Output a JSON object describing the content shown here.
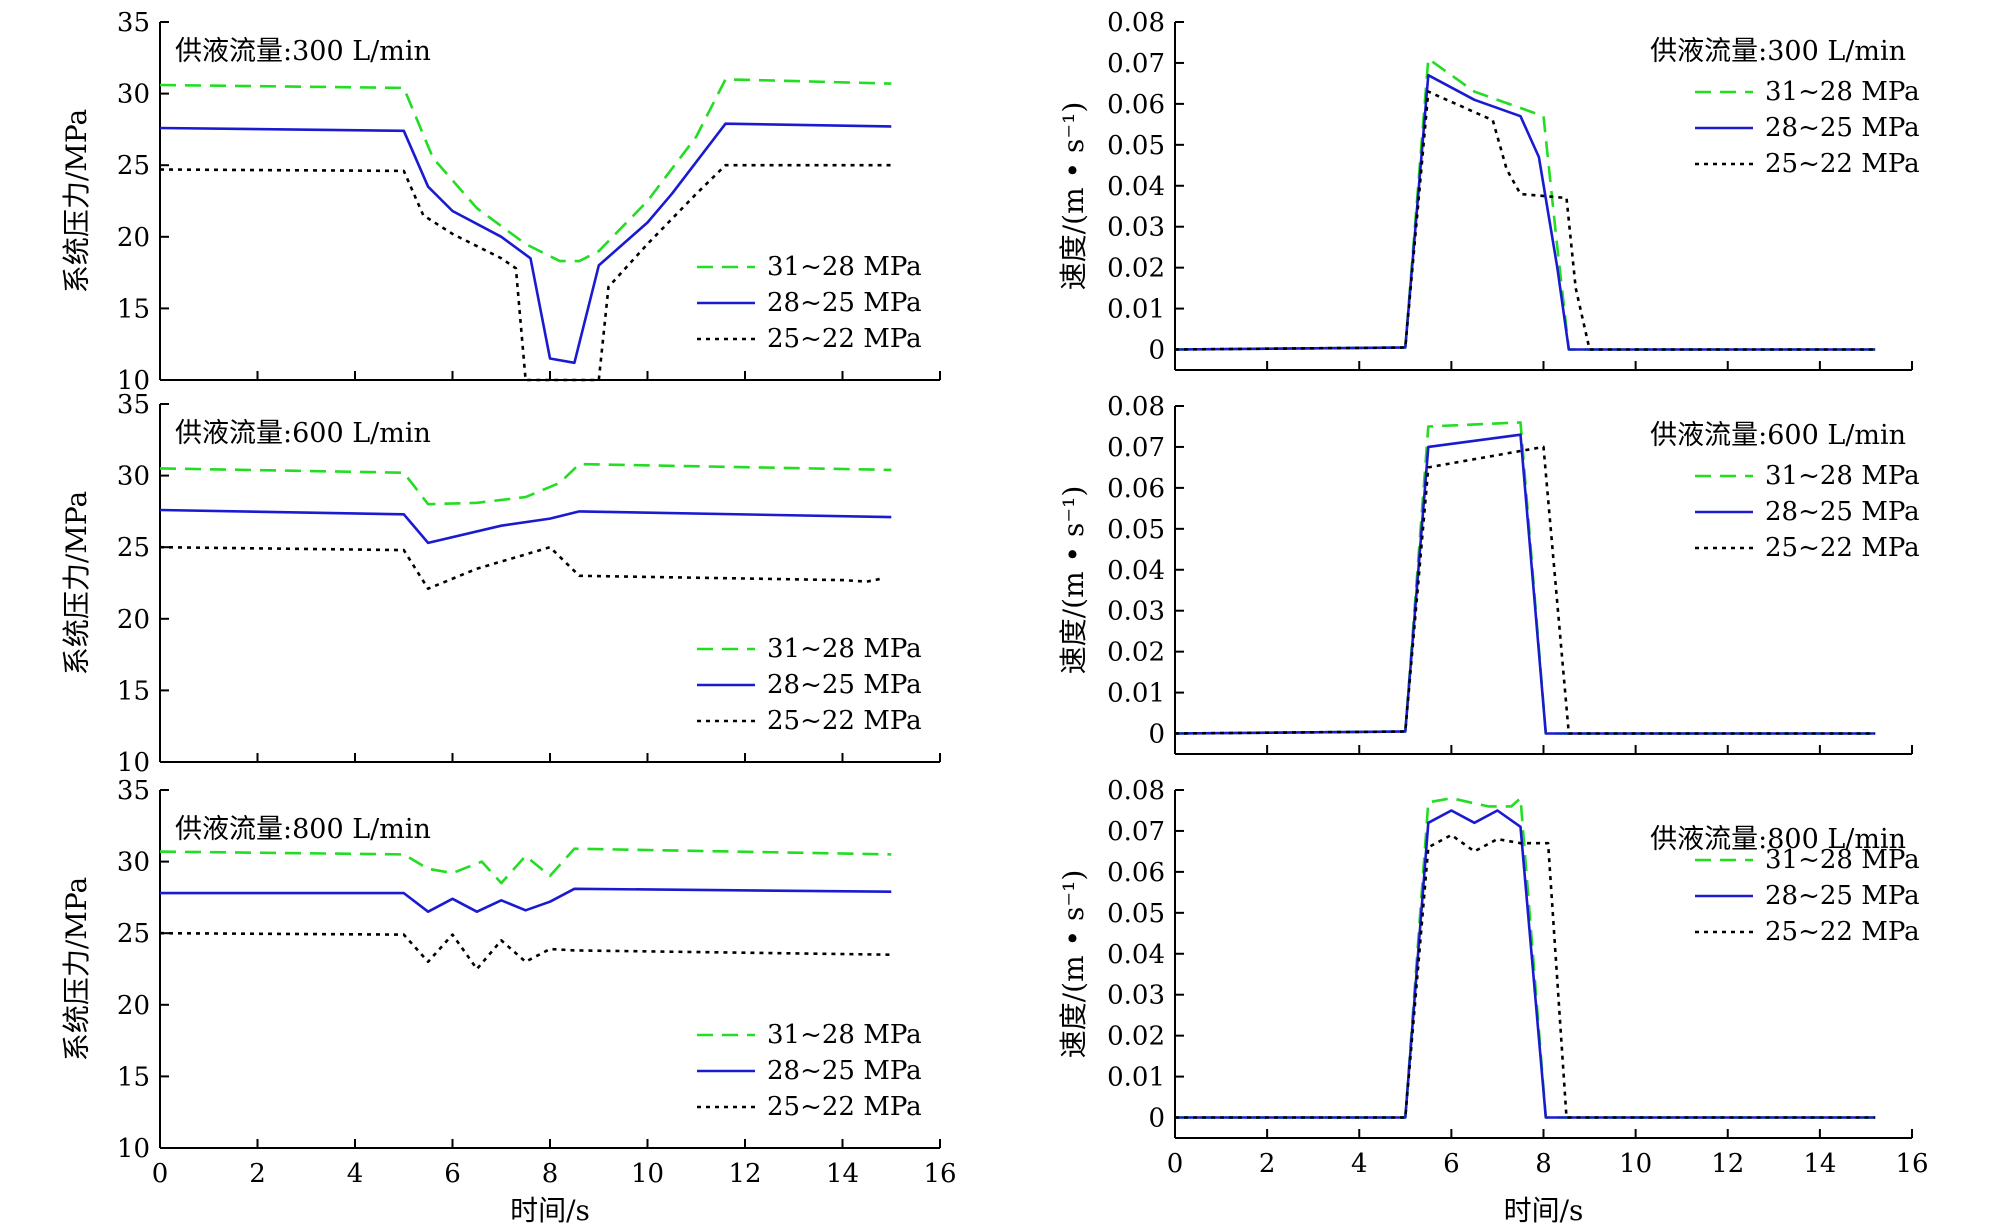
{
  "figure": {
    "xlabel": "时间/s",
    "left_ylabel": "系统压力/MPa",
    "right_ylabel": "速度/(m • s⁻¹)"
  },
  "legend": [
    {
      "name": "31~28 MPa",
      "color": "#22dd22",
      "dash": "dashed"
    },
    {
      "name": "28~25 MPa",
      "color": "#1a1ad0",
      "dash": "solid"
    },
    {
      "name": "25~22 MPa",
      "color": "#000000",
      "dash": "dotted"
    }
  ],
  "chart_data": [
    {
      "type": "line",
      "panel": "pressure-300",
      "flow_label": "供液流量:300 L/min",
      "ylabel": "系统压力/MPa",
      "xlim": [
        0,
        16
      ],
      "ylim": [
        10,
        35
      ],
      "xticks": [
        0,
        2,
        4,
        6,
        8,
        10,
        12,
        14,
        16
      ],
      "yticks": [
        10,
        15,
        20,
        25,
        30,
        35
      ],
      "series": [
        {
          "name": "31~28 MPa",
          "points": [
            [
              0,
              30.6
            ],
            [
              5,
              30.4
            ],
            [
              5.6,
              25.5
            ],
            [
              6.5,
              22
            ],
            [
              7.5,
              19.5
            ],
            [
              8.2,
              18.3
            ],
            [
              8.6,
              18.3
            ],
            [
              9,
              19
            ],
            [
              10,
              22.5
            ],
            [
              11,
              27
            ],
            [
              11.6,
              31
            ],
            [
              15,
              30.7
            ]
          ]
        },
        {
          "name": "28~25 MPa",
          "points": [
            [
              0,
              27.6
            ],
            [
              5,
              27.4
            ],
            [
              5.5,
              23.5
            ],
            [
              6,
              21.8
            ],
            [
              7,
              20
            ],
            [
              7.6,
              18.5
            ],
            [
              8,
              11.5
            ],
            [
              8.5,
              11.2
            ],
            [
              9,
              18
            ],
            [
              10,
              21
            ],
            [
              10.5,
              23
            ],
            [
              11.6,
              27.9
            ],
            [
              15,
              27.7
            ]
          ]
        },
        {
          "name": "25~22 MPa",
          "points": [
            [
              0,
              24.7
            ],
            [
              5,
              24.6
            ],
            [
              5.4,
              21.5
            ],
            [
              6,
              20.2
            ],
            [
              7,
              18.5
            ],
            [
              7.3,
              17.8
            ],
            [
              7.5,
              10
            ],
            [
              9,
              10
            ],
            [
              9.2,
              16.5
            ],
            [
              10,
              19.5
            ],
            [
              11,
              23
            ],
            [
              11.6,
              25
            ],
            [
              15,
              25
            ]
          ]
        }
      ]
    },
    {
      "type": "line",
      "panel": "pressure-600",
      "flow_label": "供液流量:600 L/min",
      "ylabel": "系统压力/MPa",
      "xlim": [
        0,
        16
      ],
      "ylim": [
        10,
        35
      ],
      "xticks": [
        0,
        2,
        4,
        6,
        8,
        10,
        12,
        14,
        16
      ],
      "yticks": [
        10,
        15,
        20,
        25,
        30,
        35
      ],
      "series": [
        {
          "name": "31~28 MPa",
          "points": [
            [
              0,
              30.5
            ],
            [
              5,
              30.2
            ],
            [
              5.5,
              28
            ],
            [
              6.5,
              28.1
            ],
            [
              7.5,
              28.5
            ],
            [
              8.2,
              29.5
            ],
            [
              8.6,
              30.8
            ],
            [
              15,
              30.4
            ]
          ]
        },
        {
          "name": "28~25 MPa",
          "points": [
            [
              0,
              27.6
            ],
            [
              5,
              27.3
            ],
            [
              5.5,
              25.3
            ],
            [
              7,
              26.5
            ],
            [
              8,
              27
            ],
            [
              8.6,
              27.5
            ],
            [
              15,
              27.1
            ]
          ]
        },
        {
          "name": "25~22 MPa",
          "points": [
            [
              0,
              25
            ],
            [
              5,
              24.8
            ],
            [
              5.5,
              22.1
            ],
            [
              6.5,
              23.5
            ],
            [
              7.5,
              24.5
            ],
            [
              8,
              25
            ],
            [
              8.6,
              23
            ],
            [
              14,
              22.7
            ],
            [
              14.5,
              22.6
            ],
            [
              14.8,
              22.8
            ]
          ]
        }
      ]
    },
    {
      "type": "line",
      "panel": "pressure-800",
      "flow_label": "供液流量:800 L/min",
      "ylabel": "系统压力/MPa",
      "xlim": [
        0,
        16
      ],
      "ylim": [
        10,
        35
      ],
      "xticks": [
        0,
        2,
        4,
        6,
        8,
        10,
        12,
        14,
        16
      ],
      "yticks": [
        10,
        15,
        20,
        25,
        30,
        35
      ],
      "series": [
        {
          "name": "31~28 MPa",
          "points": [
            [
              0,
              30.7
            ],
            [
              5,
              30.5
            ],
            [
              5.5,
              29.5
            ],
            [
              6,
              29.2
            ],
            [
              6.6,
              30
            ],
            [
              7,
              28.5
            ],
            [
              7.5,
              30.4
            ],
            [
              8,
              29
            ],
            [
              8.5,
              30.9
            ],
            [
              15,
              30.5
            ]
          ]
        },
        {
          "name": "28~25 MPa",
          "points": [
            [
              0,
              27.8
            ],
            [
              5,
              27.8
            ],
            [
              5.5,
              26.5
            ],
            [
              6,
              27.4
            ],
            [
              6.5,
              26.5
            ],
            [
              7,
              27.3
            ],
            [
              7.5,
              26.6
            ],
            [
              8,
              27.2
            ],
            [
              8.5,
              28.1
            ],
            [
              15,
              27.9
            ]
          ]
        },
        {
          "name": "25~22 MPa",
          "points": [
            [
              0,
              25
            ],
            [
              5,
              24.9
            ],
            [
              5.5,
              23
            ],
            [
              6,
              24.9
            ],
            [
              6.5,
              22.5
            ],
            [
              7,
              24.5
            ],
            [
              7.5,
              23
            ],
            [
              8,
              23.9
            ],
            [
              8.5,
              23.8
            ],
            [
              15,
              23.5
            ]
          ]
        }
      ]
    },
    {
      "type": "line",
      "panel": "speed-300",
      "flow_label": "供液流量:300 L/min",
      "ylabel": "速度/(m • s⁻¹)",
      "xlim": [
        0,
        16
      ],
      "ylim": [
        -0.005,
        0.08
      ],
      "xticks": [
        0,
        2,
        4,
        6,
        8,
        10,
        12,
        14,
        16
      ],
      "yticks": [
        0,
        0.01,
        0.02,
        0.03,
        0.04,
        0.05,
        0.06,
        0.07,
        0.08
      ],
      "ytick_labels": [
        "0",
        "0.01",
        "0.02",
        "0.03",
        "0.04",
        "0.05",
        "0.06",
        "0.07",
        "0.08"
      ],
      "series": [
        {
          "name": "31~28 MPa",
          "points": [
            [
              0,
              0
            ],
            [
              5,
              0.0005
            ],
            [
              5.5,
              0.071
            ],
            [
              6.5,
              0.063
            ],
            [
              7.5,
              0.059
            ],
            [
              8,
              0.057
            ],
            [
              8.3,
              0.025
            ],
            [
              8.55,
              0
            ],
            [
              15.2,
              0
            ]
          ]
        },
        {
          "name": "28~25 MPa",
          "points": [
            [
              0,
              0
            ],
            [
              5,
              0.0005
            ],
            [
              5.5,
              0.067
            ],
            [
              6.5,
              0.061
            ],
            [
              7.5,
              0.057
            ],
            [
              7.9,
              0.047
            ],
            [
              8.3,
              0.02
            ],
            [
              8.55,
              0
            ],
            [
              15.2,
              0
            ]
          ]
        },
        {
          "name": "25~22 MPa",
          "points": [
            [
              0,
              0
            ],
            [
              5,
              0.0005
            ],
            [
              5.5,
              0.063
            ],
            [
              6.5,
              0.058
            ],
            [
              6.9,
              0.056
            ],
            [
              7.2,
              0.044
            ],
            [
              7.5,
              0.038
            ],
            [
              8.5,
              0.037
            ],
            [
              8.7,
              0.015
            ],
            [
              9,
              0
            ],
            [
              15.2,
              0
            ]
          ]
        }
      ]
    },
    {
      "type": "line",
      "panel": "speed-600",
      "flow_label": "供液流量:600 L/min",
      "ylabel": "速度/(m • s⁻¹)",
      "xlim": [
        0,
        16
      ],
      "ylim": [
        -0.005,
        0.08
      ],
      "xticks": [
        0,
        2,
        4,
        6,
        8,
        10,
        12,
        14,
        16
      ],
      "yticks": [
        0,
        0.01,
        0.02,
        0.03,
        0.04,
        0.05,
        0.06,
        0.07,
        0.08
      ],
      "ytick_labels": [
        "0",
        "0.01",
        "0.02",
        "0.03",
        "0.04",
        "0.05",
        "0.06",
        "0.07",
        "0.08"
      ],
      "series": [
        {
          "name": "31~28 MPa",
          "points": [
            [
              0,
              0
            ],
            [
              5,
              0.0005
            ],
            [
              5.5,
              0.075
            ],
            [
              7.5,
              0.076
            ],
            [
              8.05,
              0
            ],
            [
              15.2,
              0
            ]
          ]
        },
        {
          "name": "28~25 MPa",
          "points": [
            [
              0,
              0
            ],
            [
              5,
              0.0005
            ],
            [
              5.5,
              0.07
            ],
            [
              7.5,
              0.073
            ],
            [
              8.05,
              0
            ],
            [
              15.2,
              0
            ]
          ]
        },
        {
          "name": "25~22 MPa",
          "points": [
            [
              0,
              0
            ],
            [
              5,
              0.0005
            ],
            [
              5.5,
              0.065
            ],
            [
              8,
              0.07
            ],
            [
              8.55,
              0
            ],
            [
              15.2,
              0
            ]
          ]
        }
      ]
    },
    {
      "type": "line",
      "panel": "speed-800",
      "flow_label": "供液流量:800 L/min",
      "ylabel": "速度/(m • s⁻¹)",
      "xlim": [
        0,
        16
      ],
      "ylim": [
        -0.005,
        0.08
      ],
      "xticks": [
        0,
        2,
        4,
        6,
        8,
        10,
        12,
        14,
        16
      ],
      "yticks": [
        0,
        0.01,
        0.02,
        0.03,
        0.04,
        0.05,
        0.06,
        0.07,
        0.08
      ],
      "ytick_labels": [
        "0",
        "0.01",
        "0.02",
        "0.03",
        "0.04",
        "0.05",
        "0.06",
        "0.07",
        "0.08"
      ],
      "series": [
        {
          "name": "31~28 MPa",
          "points": [
            [
              0,
              0
            ],
            [
              5,
              0
            ],
            [
              5.5,
              0.077
            ],
            [
              6,
              0.078
            ],
            [
              6.4,
              0.077
            ],
            [
              6.8,
              0.076
            ],
            [
              7,
              0.076
            ],
            [
              7.3,
              0.076
            ],
            [
              7.5,
              0.078
            ],
            [
              8.05,
              0
            ],
            [
              15.2,
              0
            ]
          ]
        },
        {
          "name": "28~25 MPa",
          "points": [
            [
              0,
              0
            ],
            [
              5,
              0
            ],
            [
              5.5,
              0.072
            ],
            [
              6,
              0.075
            ],
            [
              6.5,
              0.072
            ],
            [
              7,
              0.075
            ],
            [
              7.5,
              0.071
            ],
            [
              8.05,
              0
            ],
            [
              15.2,
              0
            ]
          ]
        },
        {
          "name": "25~22 MPa",
          "points": [
            [
              0,
              0
            ],
            [
              5,
              0
            ],
            [
              5.5,
              0.066
            ],
            [
              6,
              0.069
            ],
            [
              6.5,
              0.065
            ],
            [
              7,
              0.068
            ],
            [
              7.5,
              0.067
            ],
            [
              8.1,
              0.067
            ],
            [
              8.5,
              0
            ],
            [
              15.2,
              0
            ]
          ]
        }
      ]
    }
  ]
}
